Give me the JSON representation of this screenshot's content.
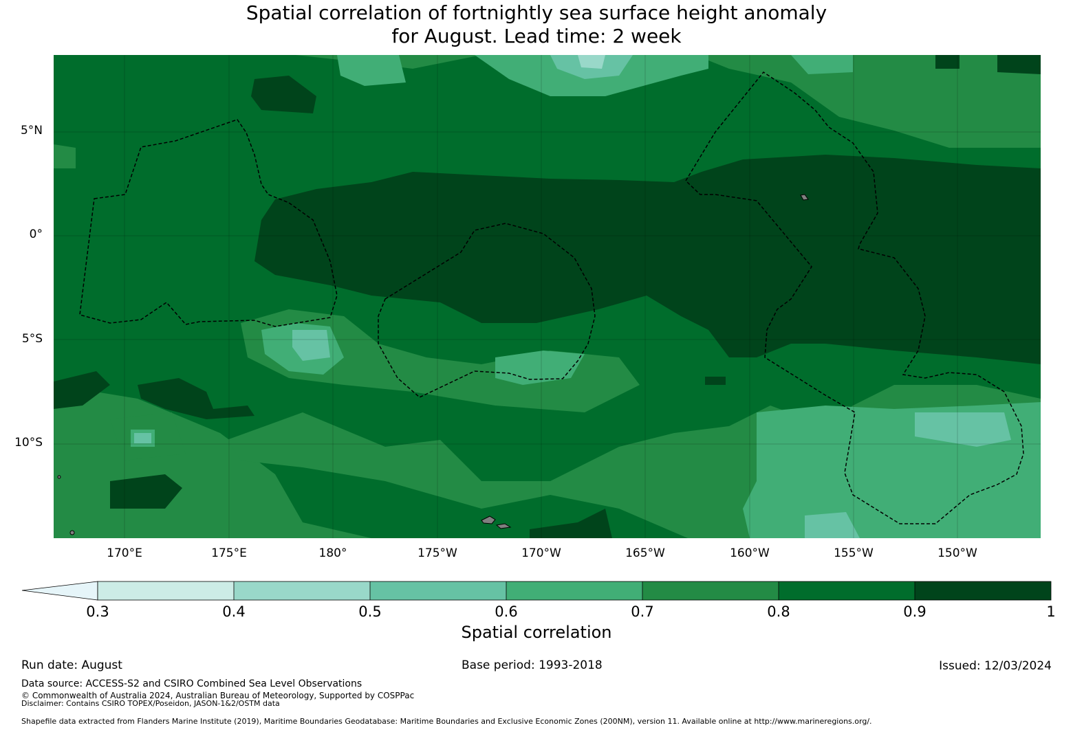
{
  "title": {
    "line1": "Spatial correlation of fortnightly sea surface height anomaly",
    "line2": "for August. Lead time: 2 week"
  },
  "map": {
    "lat_ticks": [
      "5°N",
      "0°",
      "5°S",
      "10°S"
    ],
    "lon_ticks": [
      "170°E",
      "175°E",
      "180°",
      "175°W",
      "170°W",
      "165°W",
      "160°W",
      "155°W",
      "150°W"
    ],
    "land_color": "#808080",
    "eez_line": "dashed black"
  },
  "colorbar": {
    "ticks": [
      "0.3",
      "0.4",
      "0.5",
      "0.6",
      "0.7",
      "0.8",
      "0.9",
      "1"
    ],
    "colors": [
      "#e6f5f9",
      "#ccece6",
      "#99d8c9",
      "#66c2a4",
      "#41ae76",
      "#238b45",
      "#006d2c",
      "#00441b"
    ],
    "label": "Spatial correlation"
  },
  "footer": {
    "run_date": "Run date: August",
    "base_period": "Base period: 1993-2018",
    "issued": "Issued: 12/03/2024",
    "data_source": "Data source: ACCESS-S2 and CSIRO Combined Sea Level Observations",
    "copyright": "© Commonwealth of Australia 2024, Australian Bureau of Meteorology, Supported by COSPPac",
    "disclaimer": "Disclaimer: Contains CSIRO TOPEX/Poseidon, JASON-1&2/OSTM data",
    "shapefile": "Shapefile data extracted from Flanders Marine Institute (2019), Maritime Boundaries Geodatabase: Maritime Boundaries and Exclusive Economic Zones (200NM), version 11. Available online at http://www.marineregions.org/."
  }
}
